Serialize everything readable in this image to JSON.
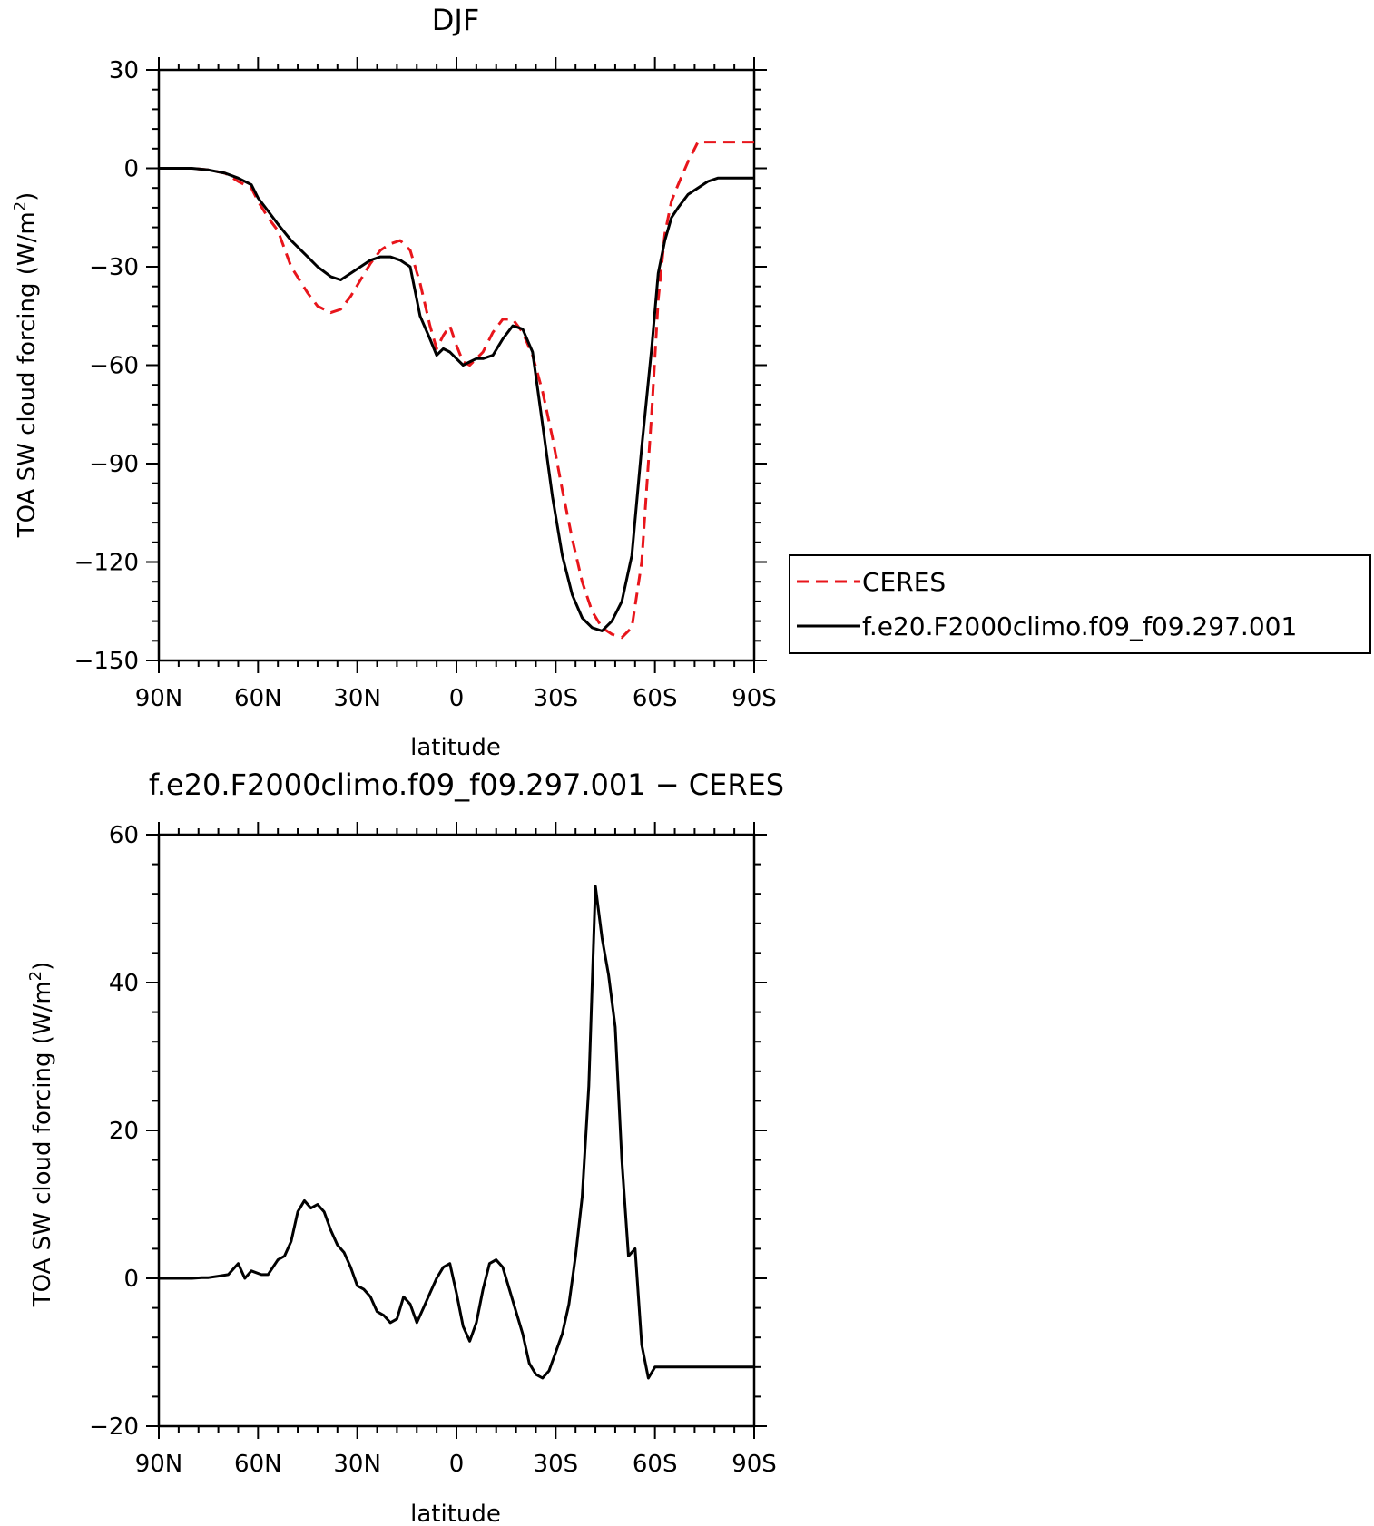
{
  "chart_data": [
    {
      "type": "line",
      "title": "DJF",
      "xlabel": "latitude",
      "ylabel_main": "TOA SW cloud forcing (W/m",
      "ylabel_sup": "2",
      "ylabel_tail": ")",
      "xlim": [
        -90,
        90
      ],
      "ylim": [
        -150,
        30
      ],
      "xticks": [
        -90,
        -60,
        -30,
        0,
        30,
        60,
        90
      ],
      "xtick_labels": [
        "90N",
        "60N",
        "30N",
        "0",
        "30S",
        "60S",
        "90S"
      ],
      "yticks": [
        30,
        0,
        -30,
        -60,
        -90,
        -120,
        -150
      ],
      "ytick_labels": [
        "30",
        "0",
        "−30",
        "−60",
        "−90",
        "−120",
        "−150"
      ],
      "legend_placement": "right",
      "series": [
        {
          "name": "CERES",
          "color": "#e8151b",
          "style": "dashed",
          "x": [
            -90,
            -80,
            -75,
            -70,
            -66,
            -62,
            -60,
            -57,
            -54,
            -50,
            -45,
            -42,
            -38,
            -35,
            -32,
            -29,
            -26,
            -23,
            -20,
            -17,
            -14,
            -11,
            -8,
            -6,
            -4,
            -2,
            0,
            2,
            4,
            6,
            8,
            11,
            14,
            17,
            20,
            23,
            26,
            29,
            32,
            35,
            38,
            41,
            44,
            47,
            50,
            53,
            56,
            59,
            61,
            63,
            65,
            67,
            70,
            73,
            76,
            79,
            82,
            85,
            88,
            90
          ],
          "y": [
            0,
            0,
            -0.5,
            -1.5,
            -4,
            -6,
            -10,
            -15,
            -19,
            -30,
            -38,
            -42,
            -44,
            -43,
            -39,
            -34,
            -29,
            -25,
            -23,
            -22,
            -25,
            -35,
            -48,
            -55,
            -51,
            -48,
            -54,
            -59,
            -60,
            -58,
            -56,
            -50,
            -46,
            -46,
            -50,
            -57,
            -68,
            -82,
            -98,
            -113,
            -126,
            -135,
            -140,
            -142,
            -143,
            -140,
            -120,
            -75,
            -40,
            -20,
            -10,
            -5,
            2,
            8,
            8,
            8,
            8,
            8,
            8,
            8
          ]
        },
        {
          "name": "f.e20.F2000climo.f09_f09.297.001",
          "color": "#000000",
          "style": "solid",
          "x": [
            -90,
            -80,
            -75,
            -70,
            -66,
            -62,
            -60,
            -57,
            -54,
            -50,
            -45,
            -42,
            -38,
            -35,
            -32,
            -29,
            -26,
            -23,
            -20,
            -17,
            -14,
            -11,
            -8,
            -6,
            -4,
            -2,
            0,
            2,
            4,
            6,
            8,
            11,
            14,
            17,
            20,
            23,
            26,
            29,
            32,
            35,
            38,
            41,
            44,
            47,
            50,
            53,
            56,
            59,
            61,
            63,
            65,
            67,
            70,
            73,
            76,
            79,
            82,
            85,
            88,
            90
          ],
          "y": [
            0,
            0,
            -0.5,
            -1.5,
            -3,
            -5,
            -9,
            -13,
            -17,
            -22,
            -27,
            -30,
            -33,
            -34,
            -32,
            -30,
            -28,
            -27,
            -27,
            -28,
            -30,
            -45,
            -52,
            -57,
            -55,
            -56,
            -58,
            -60,
            -59,
            -58,
            -58,
            -57,
            -52,
            -48,
            -49,
            -56,
            -78,
            -100,
            -118,
            -130,
            -137,
            -140,
            -141,
            -138,
            -132,
            -118,
            -85,
            -55,
            -32,
            -22,
            -15,
            -12,
            -8,
            -6,
            -4,
            -3,
            -3,
            -3,
            -3,
            -3
          ]
        }
      ]
    },
    {
      "type": "line",
      "title": "f.e20.F2000climo.f09_f09.297.001 − CERES",
      "xlabel": "latitude",
      "ylabel_main": "TOA SW cloud forcing (W/m",
      "ylabel_sup": "2",
      "ylabel_tail": ")",
      "xlim": [
        -90,
        90
      ],
      "ylim": [
        -20,
        60
      ],
      "xticks": [
        -90,
        -60,
        -30,
        0,
        30,
        60,
        90
      ],
      "xtick_labels": [
        "90N",
        "60N",
        "30N",
        "0",
        "30S",
        "60S",
        "90S"
      ],
      "yticks": [
        60,
        40,
        20,
        0,
        -20
      ],
      "ytick_labels": [
        "60",
        "40",
        "20",
        "0",
        "−20"
      ],
      "series": [
        {
          "color": "#000000",
          "style": "solid",
          "x": [
            -90,
            -85,
            -80,
            -77,
            -75,
            -72,
            -69,
            -66,
            -64,
            -62,
            -59,
            -57,
            -54,
            -52,
            -50,
            -48,
            -46,
            -44,
            -42,
            -40,
            -38,
            -36,
            -34,
            -32,
            -30,
            -28,
            -26,
            -24,
            -22,
            -20,
            -18,
            -16,
            -14,
            -12,
            -10,
            -8,
            -6,
            -4,
            -2,
            0,
            2,
            4,
            6,
            8,
            10,
            12,
            14,
            16,
            18,
            20,
            22,
            24,
            26,
            28,
            30,
            32,
            34,
            36,
            38,
            40,
            42,
            44,
            46,
            48,
            50,
            52,
            54,
            56,
            58,
            60,
            62,
            64,
            66,
            68,
            70,
            72,
            74,
            76,
            78,
            80,
            82,
            84,
            86,
            88,
            90
          ],
          "y": [
            0,
            0,
            0,
            0.1,
            0.1,
            0.3,
            0.5,
            2,
            0,
            1,
            0.5,
            0.5,
            2.5,
            3,
            5,
            9,
            10.5,
            9.5,
            10,
            9,
            6.5,
            4.5,
            3.5,
            1.5,
            -1,
            -1.5,
            -2.5,
            -4.5,
            -5,
            -6,
            -5.5,
            -2.5,
            -3.5,
            -6,
            -4,
            -2,
            0,
            1.5,
            2,
            -2,
            -6.5,
            -8.5,
            -6,
            -1.5,
            2,
            2.5,
            1.5,
            -1.5,
            -4.5,
            -7.5,
            -11.5,
            -13,
            -13.5,
            -12.5,
            -10,
            -7.5,
            -3.5,
            3,
            11,
            26,
            53,
            46,
            41,
            34,
            16,
            3,
            4,
            -9,
            -13.5,
            -12,
            -12,
            -12,
            -12,
            -12,
            -12,
            -12,
            -12,
            -12,
            -12,
            -12,
            -12,
            -12,
            -12,
            -12,
            -12
          ]
        }
      ]
    }
  ]
}
